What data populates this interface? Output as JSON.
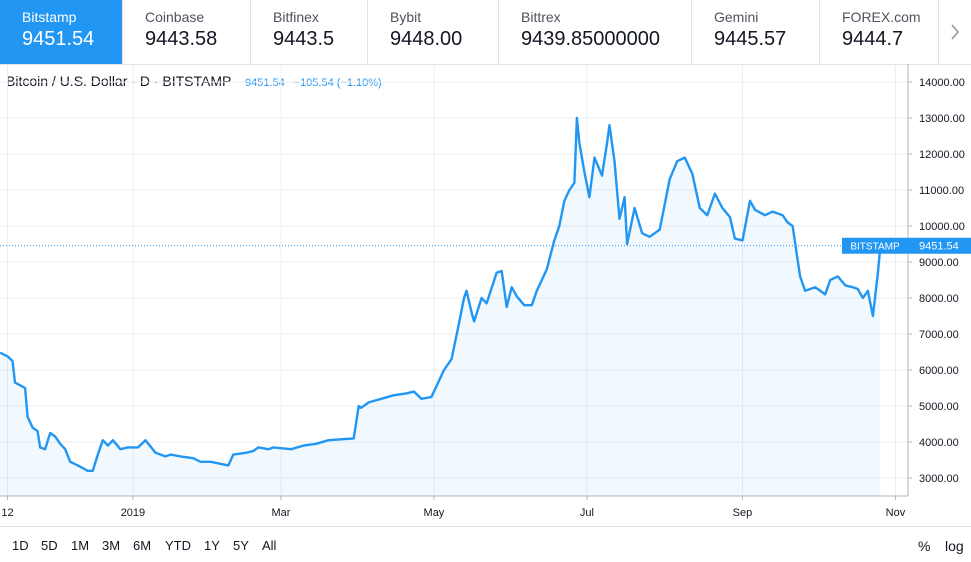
{
  "exchanges": [
    {
      "name": "Bitstamp",
      "price": "9451.54",
      "active": true
    },
    {
      "name": "Coinbase",
      "price": "9443.58"
    },
    {
      "name": "Bitfinex",
      "price": "9443.5"
    },
    {
      "name": "Bybit",
      "price": "9448.00"
    },
    {
      "name": "Bittrex",
      "price": "9439.85000000"
    },
    {
      "name": "Gemini",
      "price": "9445.57"
    },
    {
      "name": "FOREX.com",
      "price": "9444.7"
    }
  ],
  "next_icon": "chevron-right-icon",
  "header": {
    "symbol": "Bitcoin / U.S. Dollar · D · BITSTAMP",
    "last": "9451.54",
    "change": "−105.54 (−1.10%)"
  },
  "price_label": {
    "exchange": "BITSTAMP",
    "value": "9451.54"
  },
  "range_buttons": [
    "1D",
    "5D",
    "1M",
    "3M",
    "6M",
    "YTD",
    "1Y",
    "5Y",
    "All"
  ],
  "scale_buttons": [
    "%",
    "log"
  ],
  "colors": {
    "line": "#2196f3",
    "area": "#2196f3",
    "accent": "#2196f3",
    "grid": "#eceef2"
  },
  "chart_data": {
    "type": "area",
    "title": "Bitcoin / U.S. Dollar · D · BITSTAMP",
    "y_axis_position": "right",
    "ylim": [
      2500,
      14500
    ],
    "y_ticks": [
      3000,
      4000,
      5000,
      6000,
      7000,
      8000,
      9000,
      10000,
      11000,
      12000,
      13000,
      14000
    ],
    "y_tick_labels": [
      "3000.00",
      "4000.00",
      "5000.00",
      "6000.00",
      "7000.00",
      "8000.00",
      "9000.00",
      "10000.00",
      "11000.00",
      "12000.00",
      "13000.00",
      "14000.00"
    ],
    "xlim": [
      "2018-11-09",
      "2019-11-06"
    ],
    "x_ticks": [
      {
        "label": "12",
        "date": "2018-11-12"
      },
      {
        "label": "2019",
        "date": "2019-01-01"
      },
      {
        "label": "Mar",
        "date": "2019-03-01"
      },
      {
        "label": "May",
        "date": "2019-05-01"
      },
      {
        "label": "Jul",
        "date": "2019-07-01"
      },
      {
        "label": "Sep",
        "date": "2019-09-01"
      },
      {
        "label": "Nov",
        "date": "2019-11-01"
      }
    ],
    "grid": true,
    "last_value": 9451.54,
    "series": [
      {
        "x": [
          "2018-11-09",
          "2018-11-12",
          "2018-11-14",
          "2018-11-15",
          "2018-11-19",
          "2018-11-20",
          "2018-11-22",
          "2018-11-24",
          "2018-11-25",
          "2018-11-27",
          "2018-11-29",
          "2018-12-01",
          "2018-12-03",
          "2018-12-05",
          "2018-12-07",
          "2018-12-10",
          "2018-12-14",
          "2018-12-16",
          "2018-12-18",
          "2018-12-20",
          "2018-12-22",
          "2018-12-24",
          "2018-12-27",
          "2018-12-30",
          "2019-01-03",
          "2019-01-06",
          "2019-01-10",
          "2019-01-14",
          "2019-01-16",
          "2019-01-20",
          "2019-01-25",
          "2019-01-28",
          "2019-02-01",
          "2019-02-08",
          "2019-02-10",
          "2019-02-15",
          "2019-02-18",
          "2019-02-20",
          "2019-02-24",
          "2019-02-26",
          "2019-03-05",
          "2019-03-10",
          "2019-03-15",
          "2019-03-20",
          "2019-03-30",
          "2019-04-01",
          "2019-04-02",
          "2019-04-05",
          "2019-04-10",
          "2019-04-15",
          "2019-04-20",
          "2019-04-23",
          "2019-04-26",
          "2019-04-30",
          "2019-05-05",
          "2019-05-08",
          "2019-05-11",
          "2019-05-13",
          "2019-05-14",
          "2019-05-16",
          "2019-05-17",
          "2019-05-20",
          "2019-05-22",
          "2019-05-26",
          "2019-05-28",
          "2019-05-30",
          "2019-06-01",
          "2019-06-03",
          "2019-06-06",
          "2019-06-09",
          "2019-06-11",
          "2019-06-13",
          "2019-06-15",
          "2019-06-18",
          "2019-06-20",
          "2019-06-22",
          "2019-06-24",
          "2019-06-26",
          "2019-06-27",
          "2019-06-28",
          "2019-06-30",
          "2019-07-02",
          "2019-07-04",
          "2019-07-07",
          "2019-07-09",
          "2019-07-10",
          "2019-07-12",
          "2019-07-14",
          "2019-07-16",
          "2019-07-17",
          "2019-07-20",
          "2019-07-23",
          "2019-07-26",
          "2019-07-30",
          "2019-08-03",
          "2019-08-06",
          "2019-08-09",
          "2019-08-12",
          "2019-08-15",
          "2019-08-18",
          "2019-08-21",
          "2019-08-24",
          "2019-08-27",
          "2019-08-29",
          "2019-09-01",
          "2019-09-04",
          "2019-09-06",
          "2019-09-10",
          "2019-09-13",
          "2019-09-17",
          "2019-09-19",
          "2019-09-21",
          "2019-09-24",
          "2019-09-26",
          "2019-09-30",
          "2019-10-04",
          "2019-10-06",
          "2019-10-09",
          "2019-10-12",
          "2019-10-15",
          "2019-10-17",
          "2019-10-19",
          "2019-10-21",
          "2019-10-23",
          "2019-10-25",
          "2019-10-26"
        ],
        "y": [
          6480,
          6380,
          6250,
          5650,
          5500,
          4700,
          4400,
          4300,
          3850,
          3800,
          4250,
          4150,
          3950,
          3800,
          3450,
          3350,
          3200,
          3200,
          3650,
          4050,
          3900,
          4050,
          3800,
          3850,
          3850,
          4050,
          3700,
          3600,
          3650,
          3600,
          3550,
          3450,
          3450,
          3350,
          3650,
          3700,
          3750,
          3850,
          3800,
          3850,
          3800,
          3900,
          3950,
          4050,
          4100,
          5000,
          4950,
          5100,
          5200,
          5300,
          5350,
          5400,
          5200,
          5250,
          6000,
          6300,
          7300,
          8000,
          8200,
          7600,
          7350,
          8000,
          7850,
          8700,
          8750,
          7750,
          8300,
          8050,
          7800,
          7800,
          8200,
          8500,
          8800,
          9600,
          10000,
          10700,
          11000,
          11200,
          13000,
          12300,
          11500,
          10800,
          11900,
          11400,
          12300,
          12800,
          11800,
          10200,
          10800,
          9500,
          10500,
          9800,
          9700,
          9900,
          11300,
          11800,
          11900,
          11450,
          10500,
          10300,
          10900,
          10500,
          10250,
          9650,
          9600,
          10700,
          10450,
          10300,
          10400,
          10300,
          10100,
          10000,
          8600,
          8200,
          8300,
          8100,
          8500,
          8600,
          8350,
          8300,
          8250,
          8000,
          8200,
          7500,
          8700,
          9451.54
        ]
      }
    ]
  }
}
